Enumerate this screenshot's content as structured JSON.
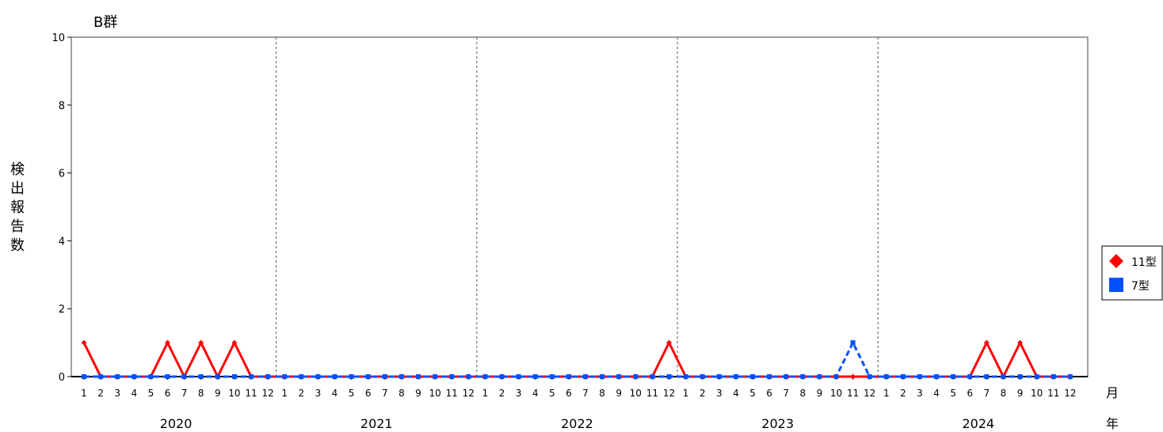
{
  "chart_data": {
    "type": "line",
    "title": "B群",
    "ylabel": "検出報告数",
    "xlabel_month": "月",
    "xlabel_year": "年",
    "ylim": [
      0,
      10
    ],
    "yticks": [
      "0",
      "2",
      "4",
      "6",
      "8",
      "10"
    ],
    "years": [
      "2020",
      "2021",
      "2022",
      "2023",
      "2024"
    ],
    "months": [
      "1",
      "2",
      "3",
      "4",
      "5",
      "6",
      "7",
      "8",
      "9",
      "10",
      "11",
      "12"
    ],
    "grid": "dashed vertical lines between years",
    "legend_placement": "right",
    "series": [
      {
        "name": "11型",
        "color": "#ff0000",
        "marker": "diamond",
        "line": "solid",
        "values": [
          1,
          0,
          0,
          0,
          0,
          1,
          0,
          1,
          0,
          1,
          0,
          0,
          0,
          0,
          0,
          0,
          0,
          0,
          0,
          0,
          0,
          0,
          0,
          0,
          0,
          0,
          0,
          0,
          0,
          0,
          0,
          0,
          0,
          0,
          0,
          1,
          0,
          0,
          0,
          0,
          0,
          0,
          0,
          0,
          0,
          0,
          0,
          0,
          0,
          0,
          0,
          0,
          0,
          0,
          1,
          0,
          1,
          0,
          0,
          0
        ]
      },
      {
        "name": "7型",
        "color": "#0050ff",
        "marker": "square",
        "line": "dashed",
        "values": [
          0,
          0,
          0,
          0,
          0,
          0,
          0,
          0,
          0,
          0,
          0,
          0,
          0,
          0,
          0,
          0,
          0,
          0,
          0,
          0,
          0,
          0,
          0,
          0,
          0,
          0,
          0,
          0,
          0,
          0,
          0,
          0,
          0,
          0,
          0,
          0,
          0,
          0,
          0,
          0,
          0,
          0,
          0,
          0,
          0,
          0,
          1,
          0,
          0,
          0,
          0,
          0,
          0,
          0,
          0,
          0,
          0,
          0,
          0,
          0
        ]
      }
    ]
  }
}
